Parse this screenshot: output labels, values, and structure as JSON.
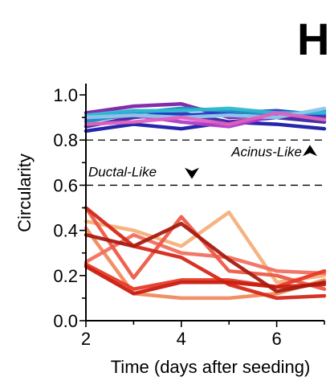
{
  "chart_data": {
    "type": "line",
    "panel_letter": "H",
    "xlabel": "Time (days after seeding)",
    "ylabel": "Circularity",
    "xlim": [
      2,
      7
    ],
    "ylim": [
      0,
      1.05
    ],
    "xticks": [
      2,
      4,
      6
    ],
    "yticks": [
      "0.0",
      "0.2",
      "0.4",
      "0.6",
      "0.8",
      "1.0"
    ],
    "x": [
      2,
      3,
      4,
      5,
      6,
      7
    ],
    "threshold_lines": [
      0.8,
      0.6
    ],
    "annotations": [
      {
        "text": "Acinus-Like",
        "arrow": "up",
        "y": 0.75
      },
      {
        "text": "Ductal-Like",
        "arrow": "down",
        "y": 0.66
      }
    ],
    "series": [
      {
        "group": "acinus",
        "color": "#1a1aa8",
        "values": [
          0.84,
          0.87,
          0.85,
          0.88,
          0.87,
          0.85
        ]
      },
      {
        "group": "acinus",
        "color": "#3a26a0",
        "values": [
          0.86,
          0.9,
          0.92,
          0.88,
          0.9,
          0.88
        ]
      },
      {
        "group": "acinus",
        "color": "#7b22a8",
        "values": [
          0.92,
          0.95,
          0.96,
          0.9,
          0.91,
          0.9
        ]
      },
      {
        "group": "acinus",
        "color": "#b03cc8",
        "values": [
          0.89,
          0.91,
          0.88,
          0.86,
          0.91,
          0.92
        ]
      },
      {
        "group": "acinus",
        "color": "#2040c8",
        "values": [
          0.9,
          0.93,
          0.91,
          0.92,
          0.93,
          0.91
        ]
      },
      {
        "group": "acinus",
        "color": "#1e90c0",
        "values": [
          0.88,
          0.92,
          0.94,
          0.93,
          0.91,
          0.93
        ]
      },
      {
        "group": "acinus",
        "color": "#30b8d0",
        "values": [
          0.91,
          0.93,
          0.93,
          0.94,
          0.92,
          0.92
        ]
      },
      {
        "group": "acinus",
        "color": "#8fc8ec",
        "values": [
          0.9,
          0.91,
          0.9,
          0.91,
          0.9,
          0.94
        ]
      },
      {
        "group": "acinus",
        "color": "#e060c0",
        "values": [
          0.87,
          0.88,
          0.9,
          0.87,
          0.92,
          0.89
        ]
      },
      {
        "group": "ductal",
        "color": "#f4b07a",
        "values": [
          0.44,
          0.4,
          0.33,
          0.48,
          0.17,
          0.2
        ]
      },
      {
        "group": "ductal",
        "color": "#f08a5e",
        "values": [
          0.41,
          0.12,
          0.1,
          0.1,
          0.12,
          0.18
        ]
      },
      {
        "group": "ductal",
        "color": "#f07060",
        "values": [
          0.26,
          0.38,
          0.3,
          0.28,
          0.22,
          0.21
        ]
      },
      {
        "group": "ductal",
        "color": "#ec5a48",
        "values": [
          0.5,
          0.19,
          0.46,
          0.22,
          0.2,
          0.14
        ]
      },
      {
        "group": "ductal",
        "color": "#e83a28",
        "values": [
          0.25,
          0.14,
          0.18,
          0.18,
          0.15,
          0.22
        ]
      },
      {
        "group": "ductal",
        "color": "#d42818",
        "values": [
          0.5,
          0.33,
          0.28,
          0.16,
          0.1,
          0.11
        ]
      },
      {
        "group": "ductal",
        "color": "#c81e10",
        "values": [
          0.24,
          0.12,
          0.17,
          0.17,
          0.15,
          0.16
        ]
      },
      {
        "group": "ductal",
        "color": "#a81a10",
        "values": [
          0.38,
          0.33,
          0.43,
          0.27,
          0.13,
          0.17
        ]
      }
    ]
  }
}
